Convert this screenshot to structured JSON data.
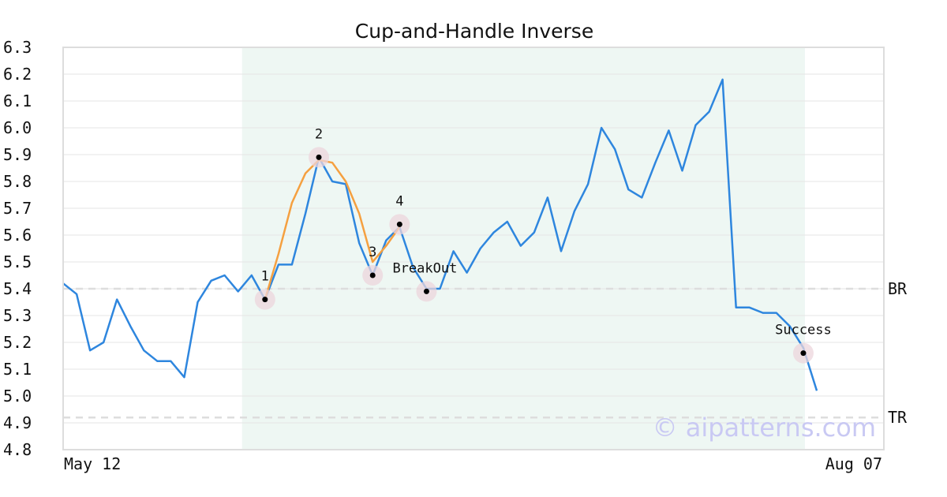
{
  "chart_data": {
    "type": "line",
    "title": "Cup-and-Handle Inverse",
    "ylim": [
      4.8,
      6.3
    ],
    "yticks": [
      "6.3",
      "6.2",
      "6.1",
      "6.0",
      "5.9",
      "5.8",
      "5.7",
      "5.6",
      "5.5",
      "5.4",
      "5.3",
      "5.2",
      "5.1",
      "5.0",
      "4.9",
      "4.8"
    ],
    "x_tick_labels": [
      "May 12",
      "Aug 07"
    ],
    "grid": true,
    "price": [
      5.42,
      5.38,
      5.17,
      5.2,
      5.36,
      5.26,
      5.17,
      5.13,
      5.13,
      5.07,
      5.35,
      5.43,
      5.45,
      5.39,
      5.45,
      5.36,
      5.49,
      5.49,
      5.68,
      5.89,
      5.8,
      5.79,
      5.57,
      5.45,
      5.58,
      5.63,
      5.48,
      5.4,
      5.4,
      5.54,
      5.46,
      5.55,
      5.61,
      5.65,
      5.56,
      5.61,
      5.74,
      5.54,
      5.69,
      5.79,
      6.0,
      5.92,
      5.77,
      5.74,
      5.87,
      5.99,
      5.84,
      6.01,
      6.06,
      6.18,
      5.33,
      5.33,
      5.31,
      5.31,
      5.26,
      5.18,
      5.02
    ],
    "pattern_curve": {
      "x": [
        15,
        16,
        17,
        18,
        19,
        20,
        21,
        22,
        23,
        24,
        25
      ],
      "y": [
        5.36,
        5.53,
        5.72,
        5.83,
        5.88,
        5.87,
        5.8,
        5.68,
        5.5,
        5.56,
        5.63
      ]
    },
    "highlight_range": [
      13,
      55
    ],
    "levels": [
      {
        "label": "BR",
        "value": 5.4
      },
      {
        "label": "TR",
        "value": 4.92
      }
    ],
    "markers": [
      {
        "label": "1",
        "x": 15,
        "y": 5.36
      },
      {
        "label": "2",
        "x": 19,
        "y": 5.89
      },
      {
        "label": "3",
        "x": 23,
        "y": 5.45
      },
      {
        "label": "4",
        "x": 25,
        "y": 5.64
      },
      {
        "label": "BreakOut",
        "x": 27,
        "y": 5.39
      },
      {
        "label": "Success",
        "x": 55,
        "y": 5.16
      }
    ],
    "colors": {
      "price_line": "#2e86de",
      "pattern_line": "#f5a040",
      "highlight": "#eef7f3",
      "marker_ring": "#ecd6dc",
      "level_line": "#dddddd",
      "grid": "#e6e6e6",
      "frame": "#dddddd"
    }
  },
  "watermark": "© aipatterns.com"
}
